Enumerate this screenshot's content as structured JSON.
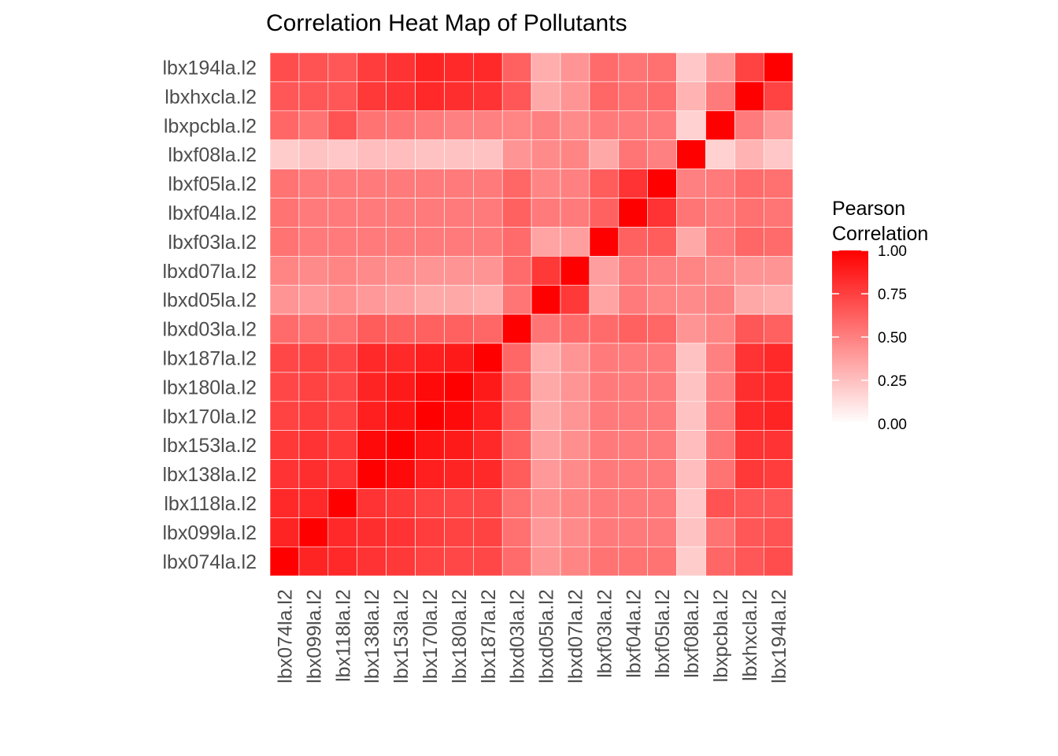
{
  "chart_data": {
    "type": "heatmap",
    "title": "Correlation Heat Map of Pollutants",
    "xlabel": "",
    "ylabel": "",
    "categories": [
      "lbx074la.l2",
      "lbx099la.l2",
      "lbx118la.l2",
      "lbx138la.l2",
      "lbx153la.l2",
      "lbx170la.l2",
      "lbx180la.l2",
      "lbx187la.l2",
      "lbxd03la.l2",
      "lbxd05la.l2",
      "lbxd07la.l2",
      "lbxf03la.l2",
      "lbxf04la.l2",
      "lbxf05la.l2",
      "lbxf08la.l2",
      "lbxpcbla.l2",
      "lbxhxcla.l2",
      "lbx194la.l2"
    ],
    "matrix": [
      [
        1.0,
        0.86,
        0.84,
        0.8,
        0.78,
        0.74,
        0.72,
        0.72,
        0.58,
        0.42,
        0.48,
        0.55,
        0.55,
        0.55,
        0.2,
        0.6,
        0.66,
        0.7
      ],
      [
        0.86,
        1.0,
        0.84,
        0.82,
        0.8,
        0.76,
        0.74,
        0.74,
        0.56,
        0.4,
        0.46,
        0.52,
        0.52,
        0.52,
        0.24,
        0.55,
        0.66,
        0.68
      ],
      [
        0.84,
        0.84,
        1.0,
        0.8,
        0.78,
        0.74,
        0.72,
        0.72,
        0.56,
        0.44,
        0.48,
        0.52,
        0.52,
        0.52,
        0.22,
        0.68,
        0.66,
        0.66
      ],
      [
        0.8,
        0.82,
        0.8,
        1.0,
        0.96,
        0.88,
        0.86,
        0.84,
        0.64,
        0.4,
        0.46,
        0.52,
        0.52,
        0.52,
        0.26,
        0.55,
        0.78,
        0.76
      ],
      [
        0.78,
        0.8,
        0.78,
        0.96,
        1.0,
        0.92,
        0.9,
        0.84,
        0.62,
        0.38,
        0.44,
        0.52,
        0.52,
        0.52,
        0.26,
        0.54,
        0.8,
        0.8
      ],
      [
        0.74,
        0.76,
        0.74,
        0.88,
        0.92,
        1.0,
        0.96,
        0.88,
        0.62,
        0.34,
        0.42,
        0.52,
        0.52,
        0.52,
        0.24,
        0.52,
        0.84,
        0.86
      ],
      [
        0.72,
        0.74,
        0.72,
        0.86,
        0.9,
        0.96,
        1.0,
        0.9,
        0.62,
        0.34,
        0.42,
        0.52,
        0.52,
        0.52,
        0.24,
        0.5,
        0.82,
        0.84
      ],
      [
        0.72,
        0.74,
        0.72,
        0.84,
        0.84,
        0.88,
        0.9,
        1.0,
        0.6,
        0.32,
        0.42,
        0.52,
        0.52,
        0.52,
        0.24,
        0.5,
        0.8,
        0.84
      ],
      [
        0.58,
        0.56,
        0.56,
        0.64,
        0.62,
        0.62,
        0.62,
        0.6,
        1.0,
        0.54,
        0.58,
        0.58,
        0.62,
        0.6,
        0.42,
        0.48,
        0.66,
        0.62
      ],
      [
        0.42,
        0.4,
        0.44,
        0.4,
        0.38,
        0.34,
        0.34,
        0.32,
        0.54,
        1.0,
        0.78,
        0.36,
        0.52,
        0.48,
        0.46,
        0.5,
        0.34,
        0.32
      ],
      [
        0.48,
        0.46,
        0.48,
        0.46,
        0.44,
        0.42,
        0.42,
        0.42,
        0.58,
        0.78,
        1.0,
        0.38,
        0.52,
        0.5,
        0.48,
        0.46,
        0.42,
        0.42
      ],
      [
        0.55,
        0.52,
        0.52,
        0.52,
        0.52,
        0.52,
        0.52,
        0.52,
        0.58,
        0.36,
        0.38,
        1.0,
        0.62,
        0.64,
        0.34,
        0.52,
        0.6,
        0.58
      ],
      [
        0.55,
        0.52,
        0.52,
        0.52,
        0.52,
        0.52,
        0.52,
        0.52,
        0.62,
        0.52,
        0.52,
        0.62,
        1.0,
        0.8,
        0.54,
        0.52,
        0.56,
        0.54
      ],
      [
        0.55,
        0.52,
        0.52,
        0.52,
        0.52,
        0.52,
        0.52,
        0.52,
        0.6,
        0.48,
        0.5,
        0.64,
        0.8,
        1.0,
        0.5,
        0.52,
        0.58,
        0.56
      ],
      [
        0.2,
        0.24,
        0.22,
        0.26,
        0.26,
        0.24,
        0.24,
        0.24,
        0.42,
        0.46,
        0.48,
        0.34,
        0.54,
        0.5,
        1.0,
        0.18,
        0.3,
        0.22
      ],
      [
        0.6,
        0.55,
        0.68,
        0.55,
        0.54,
        0.52,
        0.5,
        0.5,
        0.48,
        0.5,
        0.46,
        0.52,
        0.52,
        0.52,
        0.18,
        1.0,
        0.52,
        0.4
      ],
      [
        0.66,
        0.66,
        0.66,
        0.78,
        0.8,
        0.84,
        0.82,
        0.8,
        0.66,
        0.34,
        0.42,
        0.6,
        0.56,
        0.58,
        0.3,
        0.52,
        1.0,
        0.74
      ],
      [
        0.7,
        0.68,
        0.66,
        0.76,
        0.8,
        0.86,
        0.84,
        0.84,
        0.62,
        0.32,
        0.42,
        0.58,
        0.54,
        0.56,
        0.22,
        0.4,
        0.74,
        1.0
      ]
    ],
    "color_scale": {
      "low": "#ffffff",
      "high": "#ff0000",
      "domain": [
        0,
        1
      ]
    },
    "legend": {
      "title_lines": [
        "Pearson",
        "Correlation"
      ],
      "ticks": [
        "0.00",
        "0.25",
        "0.50",
        "0.75",
        "1.00"
      ],
      "tick_values": [
        0,
        0.25,
        0.5,
        0.75,
        1
      ],
      "placement": "right"
    },
    "grid": true
  }
}
